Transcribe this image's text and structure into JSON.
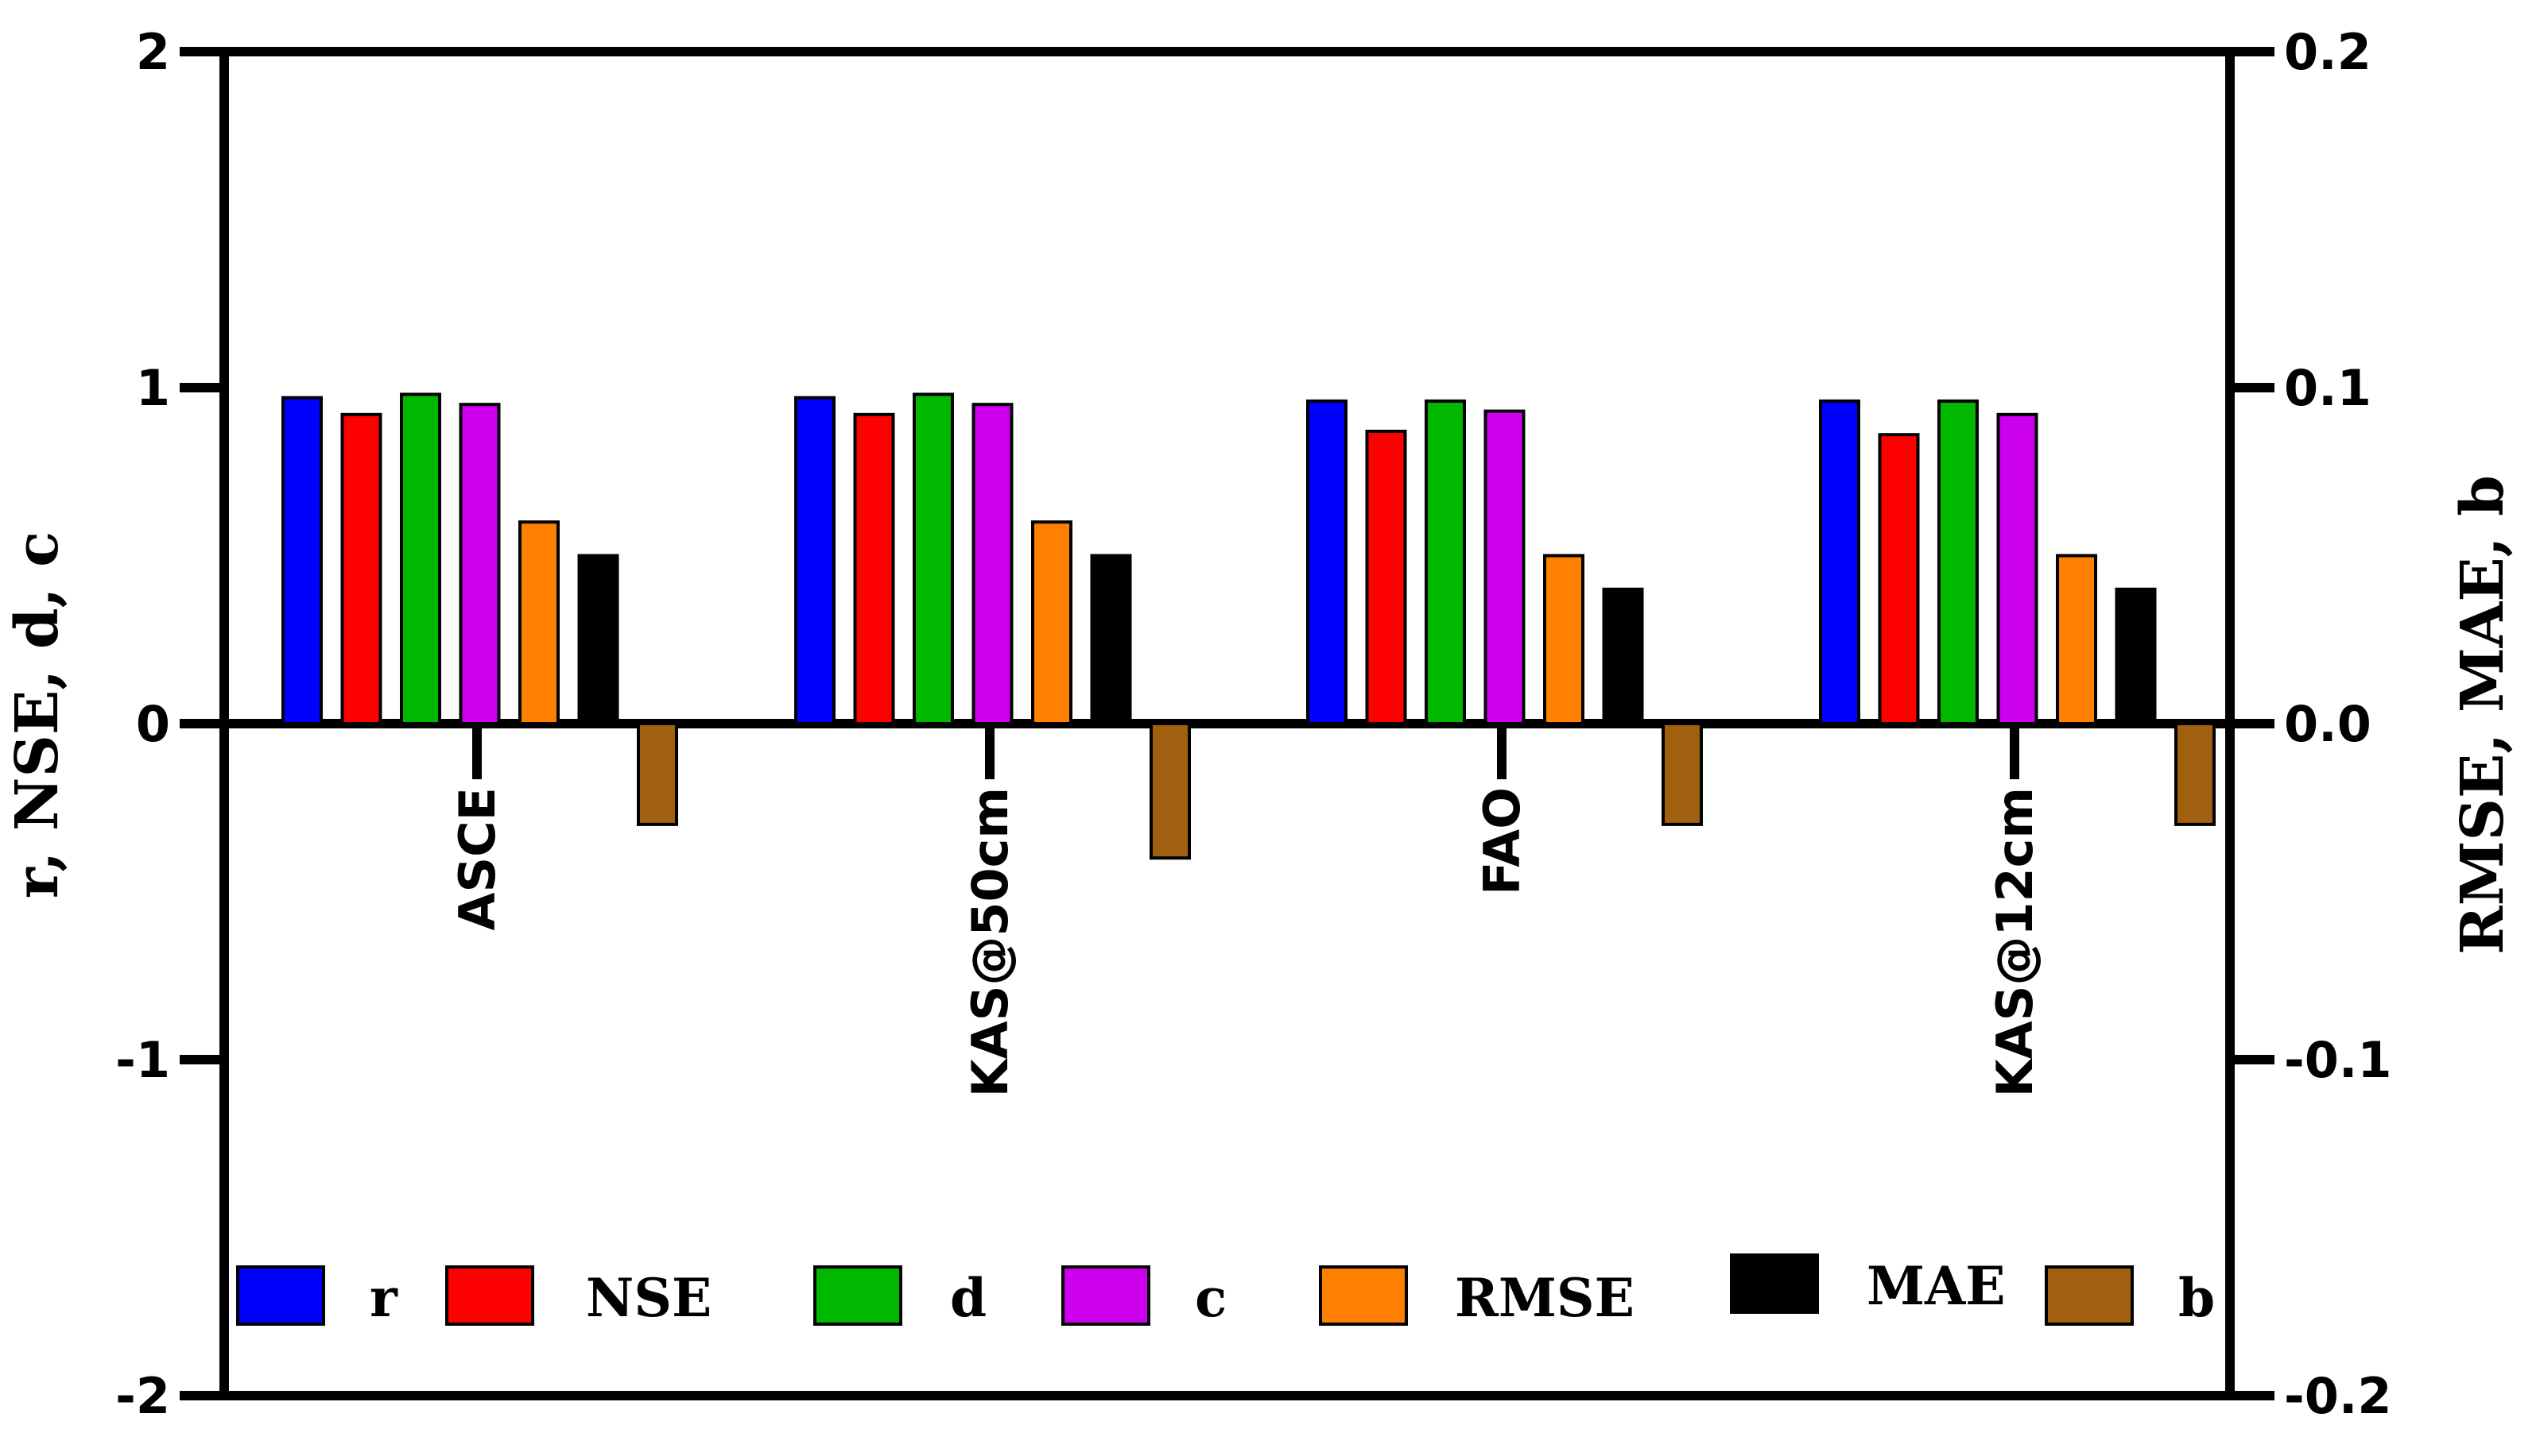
{
  "chart_data": {
    "type": "bar",
    "title": "",
    "categories": [
      "ASCE",
      "KAS@50cm",
      "FAO",
      "KAS@12cm"
    ],
    "left_axis": {
      "label": "r, NSE, d, c",
      "ylim": [
        -2,
        2
      ],
      "ticks": [
        "2",
        "1",
        "0",
        "-1",
        "-2"
      ],
      "tick_values": [
        2,
        1,
        0,
        -1,
        -2
      ]
    },
    "right_axis": {
      "label": "RMSE, MAE, b",
      "ylim": [
        -0.2,
        0.2
      ],
      "ticks": [
        "0.2",
        "0.1",
        "0.0",
        "-0.1",
        "-0.2"
      ],
      "tick_values": [
        0.2,
        0.1,
        0.0,
        -0.1,
        -0.2
      ]
    },
    "series": [
      {
        "name": "r",
        "axis": "left",
        "color": "#0000ff",
        "values": [
          0.97,
          0.97,
          0.96,
          0.96
        ]
      },
      {
        "name": "NSE",
        "axis": "left",
        "color": "#ff0000",
        "values": [
          0.92,
          0.92,
          0.87,
          0.86
        ]
      },
      {
        "name": "d",
        "axis": "left",
        "color": "#00b800",
        "values": [
          0.98,
          0.98,
          0.96,
          0.96
        ]
      },
      {
        "name": "c",
        "axis": "left",
        "color": "#cc00ee",
        "values": [
          0.95,
          0.95,
          0.93,
          0.92
        ]
      },
      {
        "name": "RMSE",
        "axis": "right",
        "color": "#ff8000",
        "values": [
          0.06,
          0.06,
          0.05,
          0.05
        ]
      },
      {
        "name": "MAE",
        "axis": "right",
        "color": "#000000",
        "values": [
          0.05,
          0.05,
          0.04,
          0.04
        ]
      },
      {
        "name": "b",
        "axis": "right",
        "color": "#a0600f",
        "values": [
          -0.03,
          -0.04,
          -0.03,
          -0.03
        ]
      }
    ],
    "legend": {
      "position": "bottom",
      "entries": [
        "r",
        "NSE",
        "d",
        "c",
        "RMSE",
        "MAE",
        "b"
      ]
    },
    "grid": false
  }
}
